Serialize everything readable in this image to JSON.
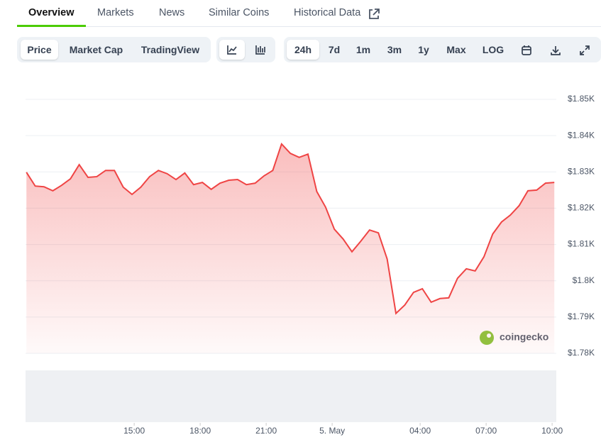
{
  "tabs": [
    "Overview",
    "Markets",
    "News",
    "Similar Coins",
    "Historical Data"
  ],
  "chart_buttons": [
    "Price",
    "Market Cap",
    "TradingView"
  ],
  "range_buttons": [
    "24h",
    "7d",
    "1m",
    "3m",
    "1y",
    "Max",
    "LOG"
  ],
  "watermark": "coingecko",
  "chart_data": {
    "type": "area",
    "color": "#ef4444",
    "x": [
      10.1,
      10.5,
      10.9,
      11.3,
      11.7,
      12.1,
      12.5,
      12.9,
      13.3,
      13.7,
      14.1,
      14.5,
      14.9,
      15.3,
      15.7,
      16.1,
      16.5,
      16.9,
      17.3,
      17.7,
      18.1,
      18.5,
      18.9,
      19.3,
      19.7,
      20.1,
      20.5,
      20.9,
      21.3,
      21.7,
      22.1,
      22.5,
      22.9,
      23.3,
      23.7,
      24.1,
      24.5,
      24.9,
      25.3,
      25.7,
      26.1,
      26.5,
      26.9,
      27.3,
      27.7,
      28.1,
      28.5,
      28.9,
      29.3,
      29.7,
      30.1,
      30.5,
      30.9,
      31.3,
      31.7,
      32.1,
      32.5,
      32.9,
      33.3,
      33.7,
      34.1
    ],
    "values": [
      1829.9,
      1826.1,
      1825.9,
      1824.8,
      1826.3,
      1828.1,
      1832.0,
      1828.5,
      1828.7,
      1830.4,
      1830.4,
      1825.8,
      1823.8,
      1825.8,
      1828.7,
      1830.4,
      1829.5,
      1827.9,
      1829.7,
      1826.5,
      1827.1,
      1825.2,
      1826.9,
      1827.7,
      1827.9,
      1826.5,
      1826.9,
      1828.9,
      1830.4,
      1837.7,
      1835.1,
      1834.0,
      1834.9,
      1824.6,
      1820.3,
      1814.2,
      1811.5,
      1808.0,
      1810.9,
      1814.0,
      1813.2,
      1806.0,
      1791.0,
      1793.3,
      1796.8,
      1797.8,
      1794.1,
      1795.1,
      1795.3,
      1800.7,
      1803.3,
      1802.7,
      1806.6,
      1812.9,
      1816.2,
      1818.1,
      1820.7,
      1824.8,
      1825.0,
      1826.9,
      1827.1
    ],
    "xlim": [
      10.06,
      34.19
    ],
    "xticks": [
      {
        "value": 15,
        "label": "15:00"
      },
      {
        "value": 18,
        "label": "18:00"
      },
      {
        "value": 21,
        "label": "21:00"
      },
      {
        "value": 24,
        "label": "5. May"
      },
      {
        "value": 28,
        "label": "04:00"
      },
      {
        "value": 31,
        "label": "07:00"
      },
      {
        "value": 34,
        "label": "10:00"
      }
    ],
    "ylim": [
      1780,
      1850
    ],
    "yticks": [
      {
        "value": 1780,
        "label": "$1.78K"
      },
      {
        "value": 1790,
        "label": "$1.79K"
      },
      {
        "value": 1800,
        "label": "$1.8K"
      },
      {
        "value": 1810,
        "label": "$1.81K"
      },
      {
        "value": 1820,
        "label": "$1.82K"
      },
      {
        "value": 1830,
        "label": "$1.83K"
      },
      {
        "value": 1840,
        "label": "$1.84K"
      },
      {
        "value": 1850,
        "label": "$1.85K"
      }
    ],
    "grid": true
  }
}
